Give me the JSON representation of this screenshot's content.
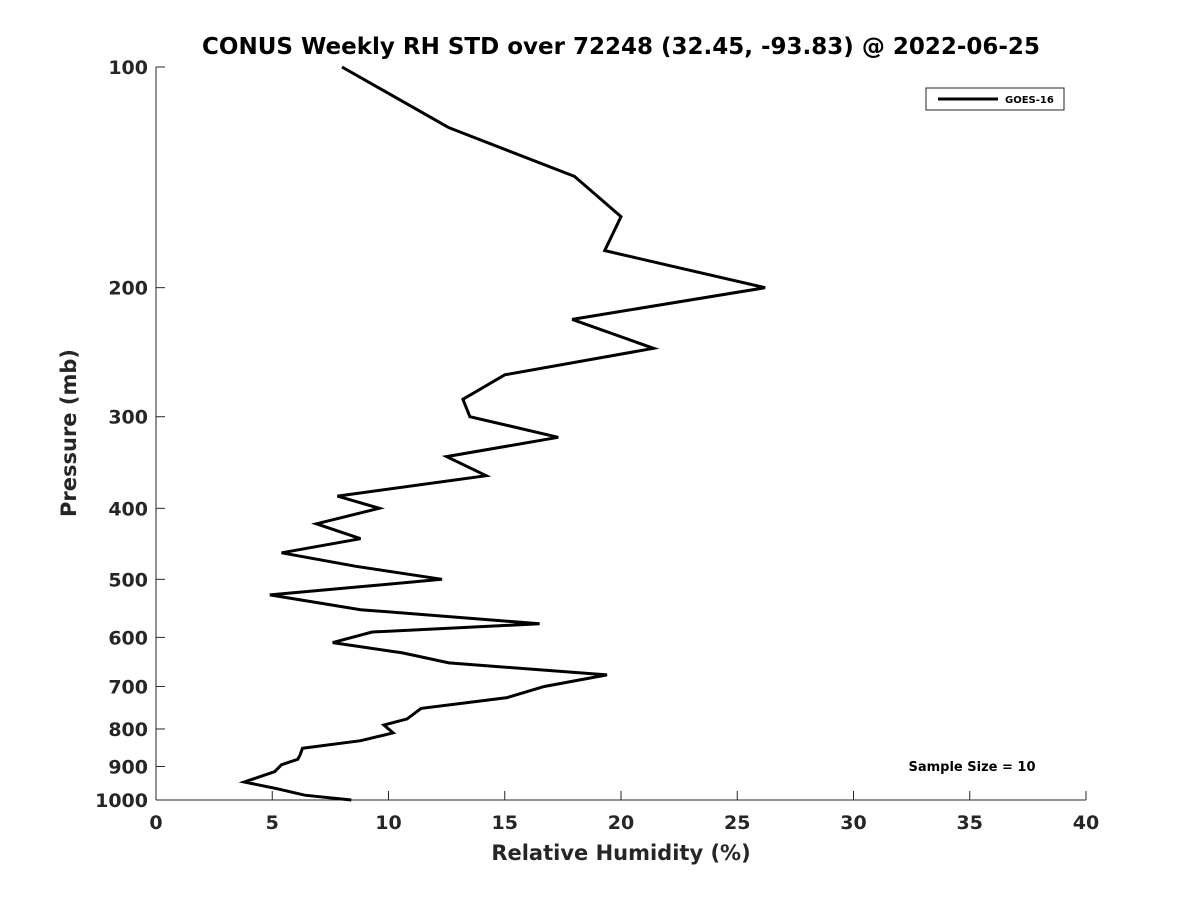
{
  "chart_data": {
    "type": "line",
    "title": "CONUS Weekly RH STD over 72248 (32.45, -93.83) @ 2022-06-25",
    "xlabel": "Relative Humidity (%)",
    "ylabel": "Pressure (mb)",
    "xlim": [
      0,
      40
    ],
    "ylim": [
      100,
      1000
    ],
    "y_scale": "log",
    "y_direction": "reversed",
    "x_ticks": [
      "0",
      "5",
      "10",
      "15",
      "20",
      "25",
      "30",
      "35",
      "40"
    ],
    "y_ticks": [
      "100",
      "200",
      "300",
      "400",
      "500",
      "600",
      "700",
      "800",
      "900",
      "1000"
    ],
    "grid": false,
    "legend_position": "top-right",
    "annotation": "Sample Size = 10",
    "series": [
      {
        "name": "GOES-16",
        "color": "#000000",
        "x": [
          8.0,
          12.6,
          18.0,
          20.0,
          19.3,
          26.2,
          17.9,
          21.4,
          15.0,
          13.2,
          13.5,
          17.3,
          12.5,
          14.2,
          7.8,
          9.6,
          6.9,
          8.8,
          5.4,
          8.6,
          12.3,
          4.9,
          8.8,
          16.5,
          9.3,
          7.6,
          10.6,
          12.6,
          19.4,
          16.7,
          15.1,
          11.4,
          10.8,
          9.8,
          10.2,
          8.8,
          6.3,
          6.2,
          6.1,
          5.4,
          5.1,
          3.8,
          5.2,
          6.4,
          8.4
        ],
        "y": [
          100,
          121,
          141,
          160,
          178,
          200,
          221,
          242,
          263,
          284,
          300,
          320,
          340,
          361,
          385,
          400,
          420,
          440,
          460,
          480,
          500,
          525,
          550,
          575,
          590,
          610,
          630,
          650,
          675,
          700,
          725,
          750,
          775,
          790,
          810,
          830,
          850,
          868,
          880,
          895,
          915,
          945,
          965,
          985,
          1000
        ]
      }
    ]
  }
}
